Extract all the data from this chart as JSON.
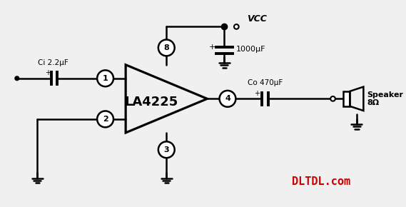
{
  "bg_color": "#f0f0f0",
  "line_color": "black",
  "text_color": "black",
  "red_color": "#cc0000",
  "title": "LA4225",
  "ci_label": "Ci 2.2μF",
  "co_label": "Co 470μF",
  "vcc_label": "VCC",
  "cap1000_label": "1000μF",
  "speaker_label": "Speaker\n8Ω",
  "watermark": "DLTDL.com",
  "pin1": "1",
  "pin2": "2",
  "pin3": "3",
  "pin4": "4",
  "pin8": "8"
}
